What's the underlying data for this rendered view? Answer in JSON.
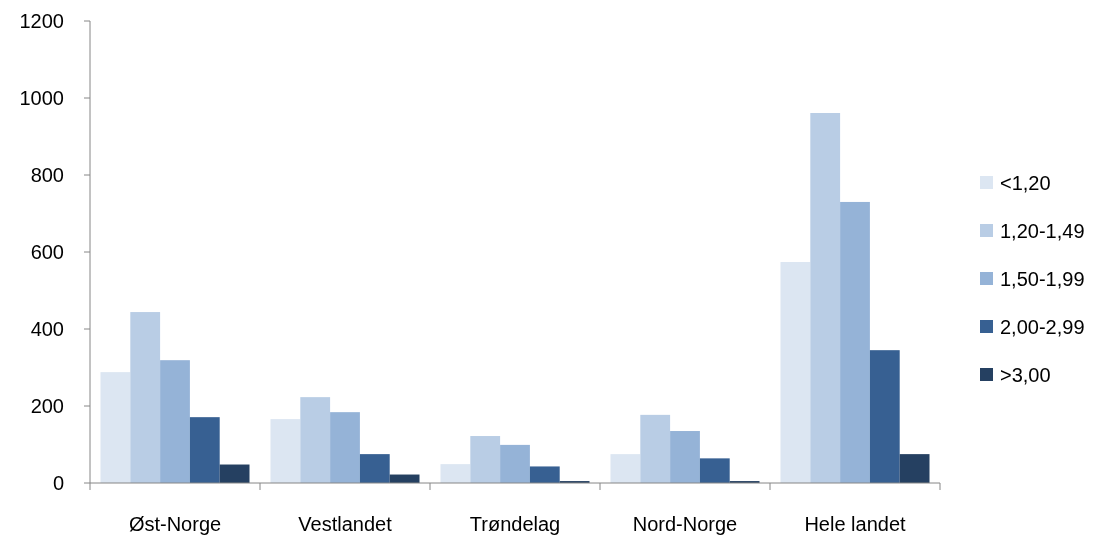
{
  "chart_data": {
    "type": "bar",
    "categories": [
      "Øst-Norge",
      "Vestlandet",
      "Trøndelag",
      "Nord-Norge",
      "Hele landet"
    ],
    "series": [
      {
        "name": "<1,20",
        "color": "#dce6f2",
        "values": [
          288,
          166,
          49,
          75,
          574
        ]
      },
      {
        "name": "1,20-1,49",
        "color": "#b9cde5",
        "values": [
          444,
          223,
          122,
          177,
          961
        ]
      },
      {
        "name": "1,50-1,99",
        "color": "#95b3d7",
        "values": [
          319,
          184,
          99,
          135,
          730
        ]
      },
      {
        "name": "2,00-2,99",
        "color": "#376092",
        "values": [
          171,
          75,
          43,
          64,
          345
        ]
      },
      {
        "name": ">3,00",
        "color": "#254061",
        "values": [
          48,
          22,
          5,
          5,
          75
        ]
      }
    ],
    "ylim": [
      0,
      1200
    ],
    "yticks": [
      0,
      200,
      400,
      600,
      800,
      1000,
      1200
    ],
    "legend": "right",
    "grid": false
  }
}
